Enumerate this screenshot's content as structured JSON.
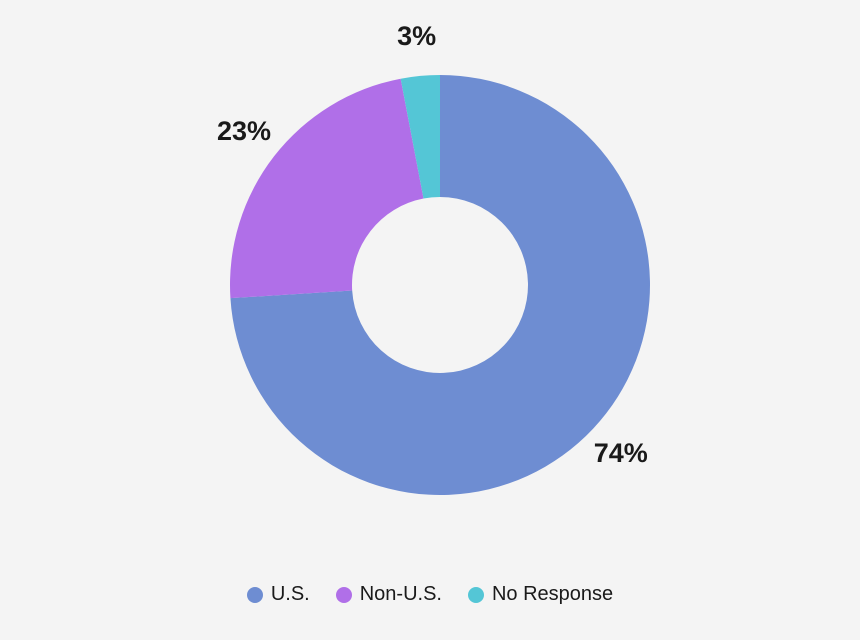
{
  "background": "#f4f4f4",
  "text_color": "#1a1a1a",
  "chart_data": {
    "type": "pie",
    "variant": "donut",
    "title": "",
    "categories": [
      "U.S.",
      "Non-U.S.",
      "No Response"
    ],
    "values": [
      74,
      23,
      3
    ],
    "unit": "%",
    "labels": [
      "74%",
      "23%",
      "3%"
    ],
    "colors": [
      "#6e8dd2",
      "#b06fe8",
      "#54c6d6"
    ],
    "start_angle_deg": 0,
    "direction": "clockwise",
    "inner_radius_ratio": 0.42,
    "legend_position": "bottom",
    "legend": [
      {
        "label": "U.S.",
        "color": "#6e8dd2"
      },
      {
        "label": "Non-U.S.",
        "color": "#b06fe8"
      },
      {
        "label": "No Response",
        "color": "#54c6d6"
      }
    ]
  }
}
